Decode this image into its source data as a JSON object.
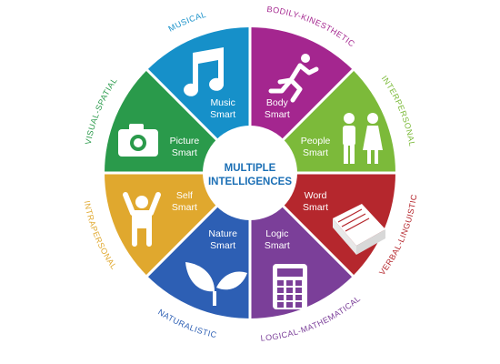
{
  "center": {
    "line1": "MULTIPLE",
    "line2": "INTELLIGENCES"
  },
  "segments": [
    {
      "id": "musical",
      "label1": "Music",
      "label2": "Smart",
      "ring": "MUSICAL",
      "color": "#1690c9",
      "icon": "music-note-icon"
    },
    {
      "id": "bodily",
      "label1": "Body",
      "label2": "Smart",
      "ring": "BODILY-KINESTHETIC",
      "color": "#a4268f",
      "icon": "running-person-icon"
    },
    {
      "id": "interpersonal",
      "label1": "People",
      "label2": "Smart",
      "ring": "INTERPERSONAL",
      "color": "#7cba3a",
      "icon": "people-icon"
    },
    {
      "id": "verbal",
      "label1": "Word",
      "label2": "Smart",
      "ring": "VERBAL-LINGUISTIC",
      "color": "#b5272d",
      "icon": "book-icon"
    },
    {
      "id": "logical",
      "label1": "Logic",
      "label2": "Smart",
      "ring": "LOGICAL-MATHEMATICAL",
      "color": "#7b3f99",
      "icon": "calculator-icon"
    },
    {
      "id": "naturalistic",
      "label1": "Nature",
      "label2": "Smart",
      "ring": "NATURALISTIC",
      "color": "#2d5fb4",
      "icon": "leaf-icon"
    },
    {
      "id": "intrapersonal",
      "label1": "Self",
      "label2": "Smart",
      "ring": "INTRAPERSONAL",
      "color": "#e0a82e",
      "icon": "self-person-icon"
    },
    {
      "id": "visual",
      "label1": "Picture",
      "label2": "Smart",
      "ring": "VISUAL-SPATIAL",
      "color": "#2a9a4b",
      "icon": "camera-icon"
    }
  ]
}
